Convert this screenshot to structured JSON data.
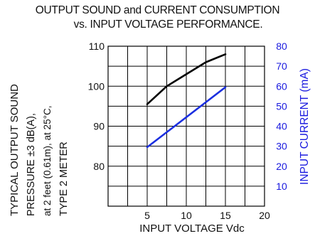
{
  "chart_data": {
    "type": "line",
    "title": "OUTPUT SOUND and CURRENT CONSUMPTION",
    "subtitle": "vs. INPUT VOLTAGE PERFORMANCE.",
    "xlabel": "INPUT VOLTAGE Vdc",
    "ylabel_lines": [
      "TYPICAL OUTPUT SOUND",
      "PRESSURE ±3 dB(A),",
      "at 2 feet (0.61m), at 25°C,",
      "TYPE 2 METER"
    ],
    "y2label": "INPUT CURRENT (mA)",
    "xlim": [
      0,
      20
    ],
    "ylim": [
      70,
      110
    ],
    "y2lim": [
      0,
      80
    ],
    "x_ticks": [
      "5",
      "10",
      "15",
      "20"
    ],
    "y_ticks": [
      "80",
      "90",
      "100",
      "110"
    ],
    "y2_ticks": [
      "10",
      "20",
      "30",
      "40",
      "50",
      "60",
      "70",
      "80"
    ],
    "grid": true,
    "y2_color": "#1a1adf",
    "series": [
      {
        "axis": "left",
        "color": "#000000",
        "x": [
          5,
          7.5,
          10,
          12.5,
          15
        ],
        "y": [
          95.5,
          100,
          103,
          106,
          108
        ]
      },
      {
        "axis": "right",
        "color": "#1b2fe0",
        "x": [
          5,
          15
        ],
        "y": [
          29.5,
          59.5
        ]
      }
    ]
  }
}
